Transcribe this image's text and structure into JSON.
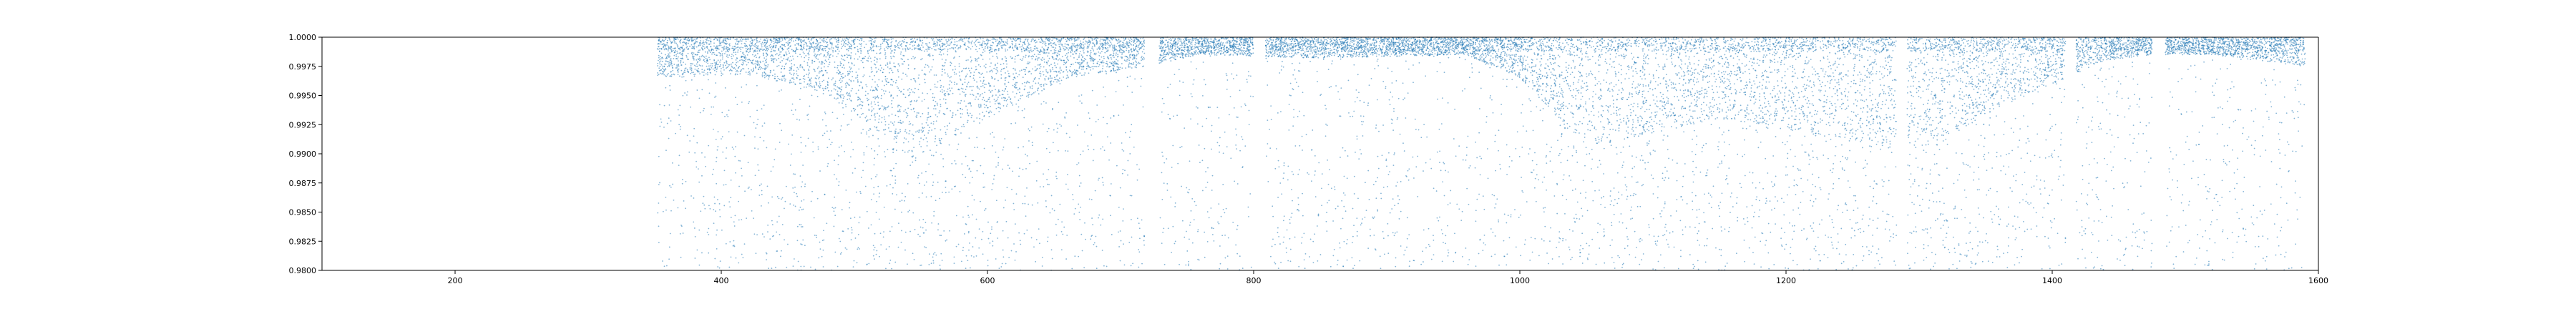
{
  "chart_data": {
    "type": "scatter",
    "title": "",
    "xlabel": "",
    "ylabel": "",
    "xlim": [
      100,
      1600
    ],
    "ylim": [
      0.98,
      1.0
    ],
    "x_ticks": [
      200,
      400,
      600,
      800,
      1000,
      1200,
      1400,
      1600
    ],
    "x_tick_labels": [
      "200",
      "400",
      "600",
      "800",
      "1000",
      "1200",
      "1400",
      "1600"
    ],
    "y_ticks": [
      0.98,
      0.9825,
      0.985,
      0.9875,
      0.99,
      0.9925,
      0.995,
      0.9975,
      1.0
    ],
    "y_tick_labels": [
      "0.9800",
      "0.9825",
      "0.9850",
      "0.9875",
      "0.9900",
      "0.9925",
      "0.9950",
      "0.9975",
      "1.0000"
    ],
    "grid": false,
    "legend": "none",
    "point_color": "#1f77b4",
    "series": [
      {
        "name": "",
        "segments": [
          {
            "x_start": 352,
            "x_end": 718,
            "baseline": 0.9982
          },
          {
            "x_start": 729,
            "x_end": 800,
            "baseline": 0.9978
          },
          {
            "x_start": 809,
            "x_end": 1283,
            "baseline": 0.998
          },
          {
            "x_start": 1291,
            "x_end": 1410,
            "baseline": 0.9978
          },
          {
            "x_start": 1418,
            "x_end": 1475,
            "baseline": 0.9985
          },
          {
            "x_start": 1485,
            "x_end": 1590,
            "baseline": 0.9982
          }
        ],
        "density_band": [
          {
            "x": 352,
            "y": 0.9965
          },
          {
            "x": 420,
            "y": 0.9968
          },
          {
            "x": 470,
            "y": 0.9955
          },
          {
            "x": 500,
            "y": 0.9935
          },
          {
            "x": 545,
            "y": 0.9895
          },
          {
            "x": 600,
            "y": 0.993
          },
          {
            "x": 660,
            "y": 0.9965
          },
          {
            "x": 718,
            "y": 0.9975
          },
          {
            "x": 760,
            "y": 0.9985
          },
          {
            "x": 850,
            "y": 0.9982
          },
          {
            "x": 960,
            "y": 0.9985
          },
          {
            "x": 1000,
            "y": 0.9965
          },
          {
            "x": 1050,
            "y": 0.9905
          },
          {
            "x": 1150,
            "y": 0.993
          },
          {
            "x": 1283,
            "y": 0.9905
          },
          {
            "x": 1310,
            "y": 0.9905
          },
          {
            "x": 1360,
            "y": 0.994
          },
          {
            "x": 1400,
            "y": 0.996
          },
          {
            "x": 1440,
            "y": 0.998
          },
          {
            "x": 1475,
            "y": 0.9985
          },
          {
            "x": 1520,
            "y": 0.9985
          },
          {
            "x": 1590,
            "y": 0.9975
          }
        ]
      }
    ]
  }
}
